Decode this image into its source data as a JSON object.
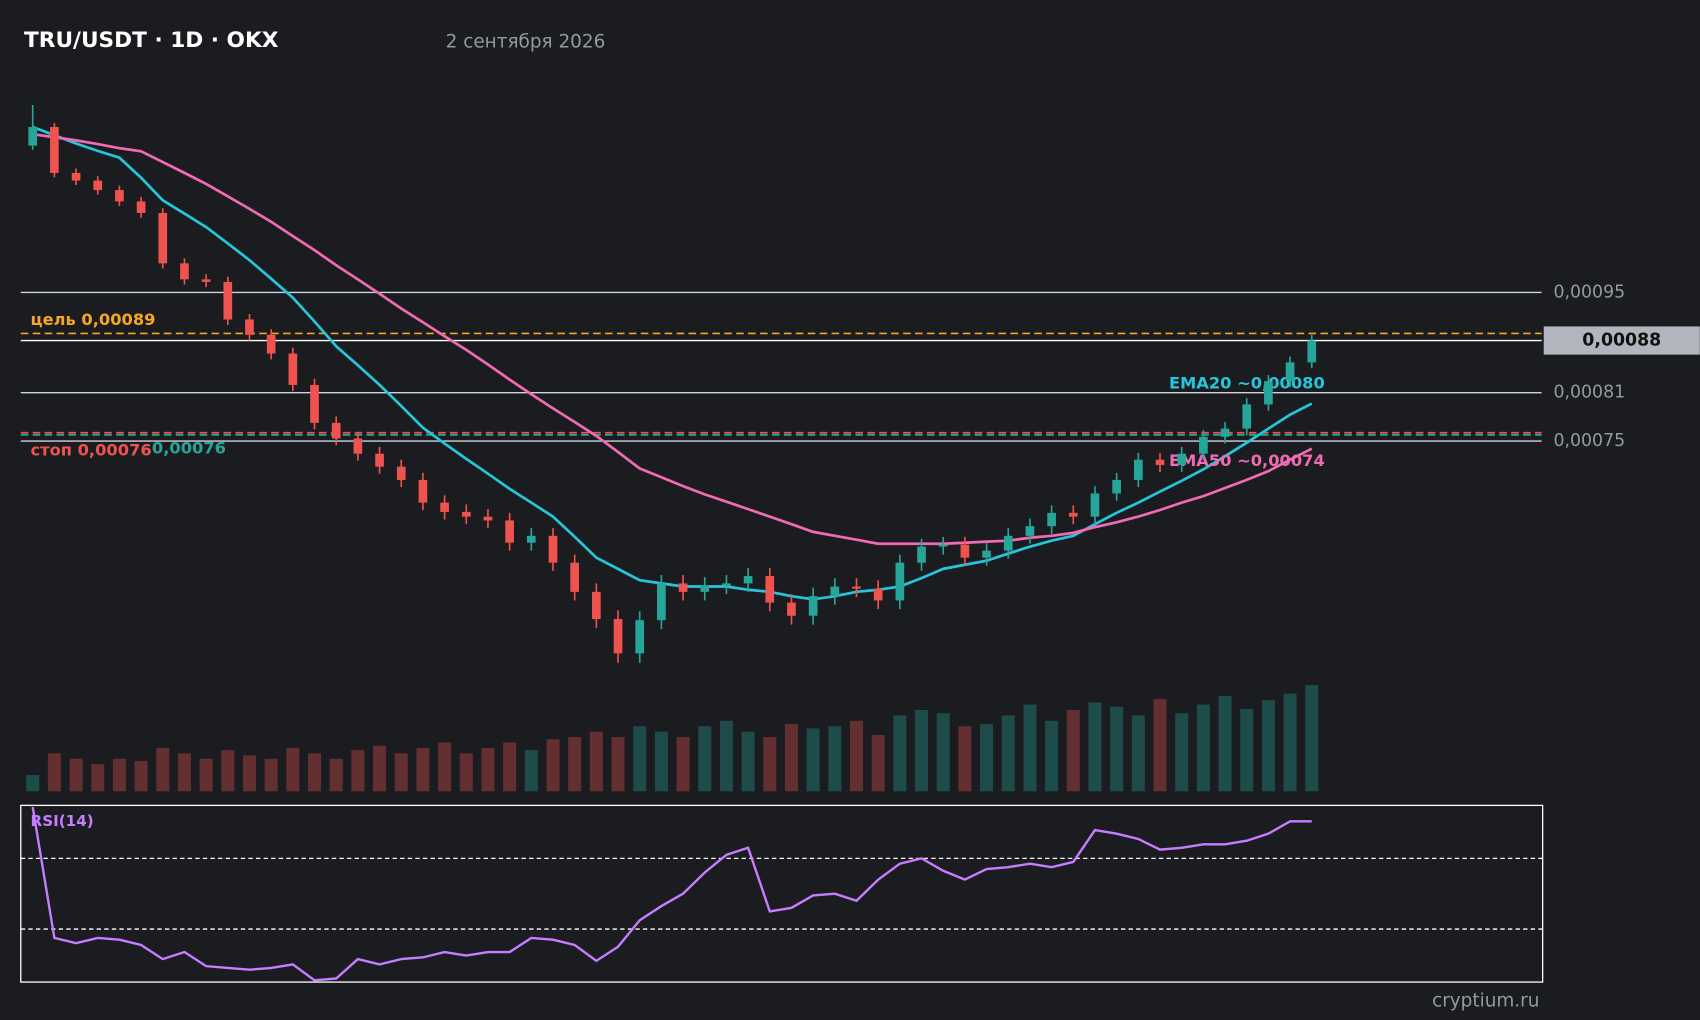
{
  "chart_data": {
    "type": "candlestick",
    "title": "TRU/USDT · 1D · OKX",
    "subtitle": "2 сентября 2026",
    "watermark": "cryptium.ru",
    "log_scale": true,
    "ylim": [
      0.0005,
      0.00135
    ],
    "yticks": [
      {
        "value": 0.00095,
        "label": "0,00095"
      },
      {
        "value": 0.00081,
        "label": "0,00081"
      },
      {
        "value": 0.00075,
        "label": "0,00075"
      }
    ],
    "grid": true,
    "up_color": "#26a69a",
    "down_color": "#ef5350",
    "last_price": {
      "value": 0.00088,
      "label": "0,00088"
    },
    "open": [
      0.0012,
      0.001236,
      0.001149,
      0.001135,
      0.001118,
      0.001098,
      0.001078,
      0.000995,
      0.00097,
      0.000966,
      0.00091,
      0.000888,
      0.000862,
      0.00082,
      0.000772,
      0.000753,
      0.000735,
      0.00072,
      0.000705,
      0.00068,
      0.00067,
      0.000665,
      0.000661,
      0.000638,
      0.000645,
      0.000618,
      0.00059,
      0.000565,
      0.000535,
      0.000564,
      0.000598,
      0.00059,
      0.000596,
      0.000598,
      0.000605,
      0.00058,
      0.000568,
      0.000586,
      0.000595,
      0.000593,
      0.000582,
      0.000618,
      0.000634,
      0.000636,
      0.000623,
      0.00063,
      0.000645,
      0.000655,
      0.000669,
      0.000665,
      0.00069,
      0.000705,
      0.000728,
      0.000722,
      0.000735,
      0.000755,
      0.000765,
      0.000795,
      0.000825,
      0.00085
    ],
    "high": [
      0.00128,
      0.001244,
      0.001157,
      0.001143,
      0.001126,
      0.001106,
      0.001086,
      0.001003,
      0.000978,
      0.000974,
      0.000918,
      0.000896,
      0.00087,
      0.000828,
      0.00078,
      0.000761,
      0.000743,
      0.000728,
      0.000713,
      0.000688,
      0.000678,
      0.000673,
      0.000669,
      0.000653,
      0.000653,
      0.000626,
      0.000598,
      0.000573,
      0.000572,
      0.000606,
      0.000606,
      0.000604,
      0.000606,
      0.000613,
      0.000613,
      0.000588,
      0.000594,
      0.000603,
      0.000603,
      0.000601,
      0.000626,
      0.000642,
      0.000644,
      0.000644,
      0.000638,
      0.000653,
      0.000663,
      0.000677,
      0.000677,
      0.000698,
      0.000713,
      0.000736,
      0.000736,
      0.000743,
      0.000763,
      0.000773,
      0.000803,
      0.000833,
      0.000858,
      0.000888
    ],
    "low": [
      0.001192,
      0.001141,
      0.001127,
      0.00111,
      0.00109,
      0.00107,
      0.000987,
      0.000962,
      0.000958,
      0.000902,
      0.00088,
      0.000854,
      0.000812,
      0.000764,
      0.000745,
      0.000727,
      0.000712,
      0.000697,
      0.000672,
      0.000662,
      0.000657,
      0.000653,
      0.00063,
      0.00063,
      0.00061,
      0.000582,
      0.000557,
      0.000527,
      0.000527,
      0.000556,
      0.000582,
      0.000582,
      0.000588,
      0.00059,
      0.000572,
      0.00056,
      0.00056,
      0.000578,
      0.000585,
      0.000574,
      0.000574,
      0.00061,
      0.000626,
      0.000615,
      0.000615,
      0.000622,
      0.000637,
      0.000647,
      0.000657,
      0.000657,
      0.000682,
      0.000697,
      0.000714,
      0.000714,
      0.000727,
      0.000747,
      0.000757,
      0.000787,
      0.000817,
      0.000842
    ],
    "close": [
      0.001236,
      0.001149,
      0.001135,
      0.001118,
      0.001098,
      0.001078,
      0.000995,
      0.00097,
      0.000966,
      0.00091,
      0.000888,
      0.000862,
      0.00082,
      0.000772,
      0.000753,
      0.000735,
      0.00072,
      0.000705,
      0.00068,
      0.00067,
      0.000665,
      0.000661,
      0.000638,
      0.000645,
      0.000618,
      0.00059,
      0.000565,
      0.000535,
      0.000564,
      0.000598,
      0.00059,
      0.000596,
      0.000598,
      0.000605,
      0.00058,
      0.000568,
      0.000586,
      0.000595,
      0.000593,
      0.000582,
      0.000618,
      0.000634,
      0.000636,
      0.000623,
      0.00063,
      0.000645,
      0.000655,
      0.000669,
      0.000665,
      0.00069,
      0.000705,
      0.000728,
      0.000722,
      0.000735,
      0.000755,
      0.000765,
      0.000795,
      0.000825,
      0.00085,
      0.00088
    ],
    "volume": [
      15,
      35,
      30,
      25,
      30,
      28,
      40,
      35,
      30,
      38,
      33,
      30,
      40,
      35,
      30,
      38,
      42,
      35,
      40,
      45,
      35,
      40,
      45,
      38,
      48,
      50,
      55,
      50,
      60,
      55,
      50,
      60,
      65,
      55,
      50,
      62,
      58,
      60,
      65,
      52,
      70,
      75,
      72,
      60,
      62,
      70,
      80,
      65,
      75,
      82,
      78,
      70,
      85,
      72,
      80,
      88,
      76,
      84,
      90,
      98
    ],
    "vlim": [
      0,
      100
    ],
    "series": [
      {
        "name": "EMA20 ~0,00080",
        "color": "#26c6da",
        "values": [
          0.001236,
          0.00122,
          0.001204,
          0.00119,
          0.001177,
          0.00114,
          0.0011,
          0.001077,
          0.001054,
          0.001027,
          0.001,
          0.000971,
          0.000942,
          0.000907,
          0.000872,
          0.000846,
          0.00082,
          0.000793,
          0.000766,
          0.000747,
          0.000729,
          0.000712,
          0.000695,
          0.00068,
          0.000665,
          0.000644,
          0.000623,
          0.000612,
          0.000601,
          0.000598,
          0.000595,
          0.000595,
          0.000595,
          0.000592,
          0.00059,
          0.000586,
          0.000583,
          0.000586,
          0.00059,
          0.000592,
          0.000595,
          0.000603,
          0.000612,
          0.000616,
          0.00062,
          0.000627,
          0.000634,
          0.00064,
          0.000645,
          0.000657,
          0.000669,
          0.00068,
          0.000692,
          0.000704,
          0.000717,
          0.000732,
          0.000748,
          0.000765,
          0.000782,
          0.000796
        ]
      },
      {
        "name": "EMA50 ~0,00074",
        "color": "#f06ab4",
        "values": [
          0.001222,
          0.001216,
          0.00121,
          0.001203,
          0.001195,
          0.001189,
          0.001169,
          0.001149,
          0.001129,
          0.001107,
          0.001085,
          0.001063,
          0.001039,
          0.001016,
          0.000992,
          0.00097,
          0.000948,
          0.000926,
          0.000906,
          0.000886,
          0.000867,
          0.000847,
          0.000827,
          0.000808,
          0.00079,
          0.000773,
          0.000756,
          0.000737,
          0.000718,
          0.000708,
          0.000698,
          0.000689,
          0.000681,
          0.000673,
          0.000665,
          0.000657,
          0.000649,
          0.000645,
          0.000641,
          0.000637,
          0.000637,
          0.000637,
          0.000637,
          0.000638,
          0.000639,
          0.00064,
          0.000643,
          0.000645,
          0.000648,
          0.000654,
          0.000659,
          0.000665,
          0.000672,
          0.00068,
          0.000687,
          0.000696,
          0.000705,
          0.000715,
          0.000728,
          0.000741
        ]
      }
    ],
    "levels": [
      {
        "label": "цель 0,00089",
        "value": 0.00089,
        "color": "#f5a623"
      },
      {
        "label": "стоп 0,00076",
        "value": 0.00076,
        "color": "#ef5350"
      },
      {
        "label": "0,00076",
        "value": 0.00076,
        "color": "#26a69a"
      }
    ],
    "rsi": {
      "label": "RSI(14)",
      "color": "#c77dff",
      "ylim": [
        0,
        100
      ],
      "levels": [
        70,
        30
      ],
      "values": [
        99,
        25,
        22,
        25,
        24,
        21,
        13,
        17,
        9,
        8,
        7,
        8,
        10,
        1,
        2,
        13,
        10,
        13,
        14,
        17,
        15,
        17,
        17,
        25,
        24,
        21,
        12,
        20,
        35,
        43,
        50,
        62,
        72,
        76,
        40,
        42,
        49,
        50,
        46,
        58,
        67,
        70,
        63,
        58,
        64,
        65,
        67,
        65,
        68,
        86,
        84,
        81,
        75,
        76,
        78,
        78,
        80,
        84,
        91,
        91
      ]
    }
  }
}
